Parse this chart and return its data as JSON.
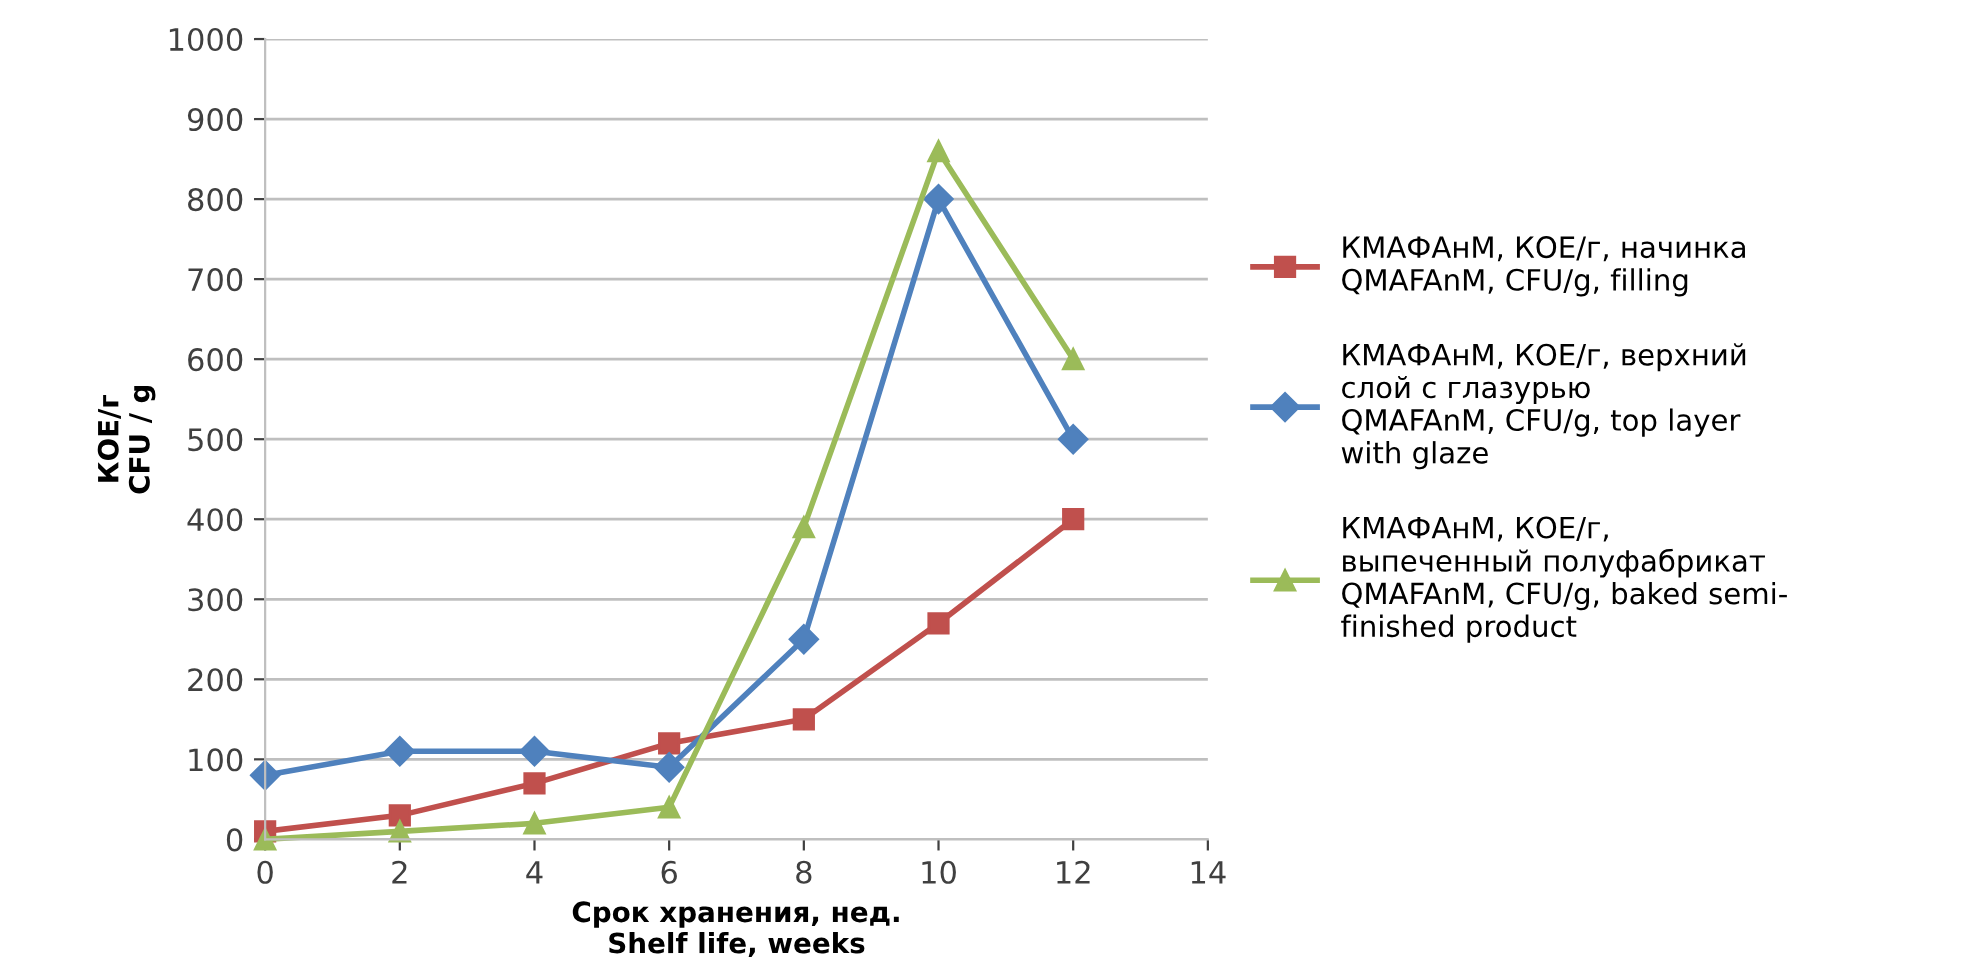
{
  "chart_data": {
    "type": "line",
    "xlabel": "Срок хранения, нед.\nShelf life, weeks",
    "ylabel": "КОЕ/г\nCFU / g",
    "x": [
      0,
      2,
      4,
      6,
      8,
      10,
      12
    ],
    "series": [
      {
        "name": "КМАФАнМ, КОЕ/г, начинка\nQMAFAnM, CFU/g, filling",
        "color": "#c0504d",
        "marker": "square",
        "values": [
          10,
          30,
          70,
          120,
          150,
          270,
          400
        ]
      },
      {
        "name": "КМАФАнМ, КОЕ/г, верхний\nслой с глазурью\nQMAFAnM, CFU/g, top layer\nwith glaze",
        "color": "#4f81bd",
        "marker": "diamond",
        "values": [
          80,
          110,
          110,
          90,
          250,
          800,
          500
        ]
      },
      {
        "name": "КМАФАнМ, КОЕ/г,\nвыпеченный полуфабрикат\nQMAFAnM, CFU/g, baked semi-\nfinished product",
        "color": "#9bbb59",
        "marker": "triangle",
        "values": [
          0,
          10,
          20,
          40,
          390,
          860,
          600
        ]
      }
    ],
    "xlim": [
      0,
      14
    ],
    "xticks": [
      0,
      2,
      4,
      6,
      8,
      10,
      12,
      14
    ],
    "ylim": [
      0,
      1000
    ],
    "yticks": [
      0,
      100,
      200,
      300,
      400,
      500,
      600,
      700,
      800,
      900,
      1000
    ],
    "grid": "y",
    "legend": "right",
    "line_style": "solid"
  }
}
